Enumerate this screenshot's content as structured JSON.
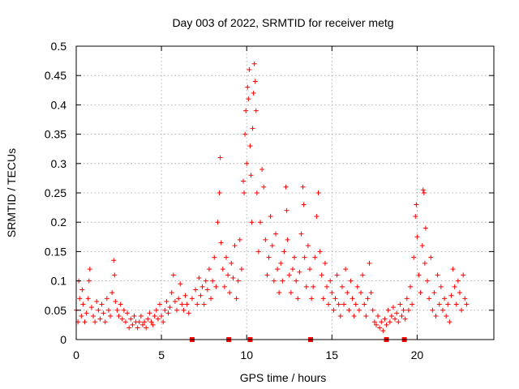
{
  "chart_data": {
    "type": "scatter",
    "title": "Day 003 of 2022, SRMTID for receiver metg",
    "xlabel": "GPS time / hours",
    "ylabel": "SRMTID / TECUs",
    "xlim": [
      0,
      24.5
    ],
    "ylim": [
      0,
      0.5
    ],
    "xticks": [
      0,
      5,
      10,
      15,
      20
    ],
    "xtick_labels": [
      "0",
      "5",
      "10",
      "15",
      "20"
    ],
    "yticks": [
      0,
      0.05,
      0.1,
      0.15,
      0.2,
      0.25,
      0.3,
      0.35,
      0.4,
      0.45,
      0.5
    ],
    "ytick_labels": [
      "0",
      "0.05",
      "0.1",
      "0.15",
      "0.2",
      "0.25",
      "0.3",
      "0.35",
      "0.4",
      "0.45",
      "0.5"
    ],
    "grid": true,
    "marker": "+",
    "color": "#ff0000",
    "series": [
      {
        "name": "SRMTID",
        "points": [
          [
            0.0,
            0.05
          ],
          [
            0.1,
            0.03
          ],
          [
            0.15,
            0.1
          ],
          [
            0.2,
            0.07
          ],
          [
            0.3,
            0.04
          ],
          [
            0.35,
            0.085
          ],
          [
            0.4,
            0.06
          ],
          [
            0.5,
            0.03
          ],
          [
            0.6,
            0.045
          ],
          [
            0.7,
            0.07
          ],
          [
            0.75,
            0.1
          ],
          [
            0.8,
            0.12
          ],
          [
            0.9,
            0.055
          ],
          [
            1.0,
            0.04
          ],
          [
            1.1,
            0.03
          ],
          [
            1.2,
            0.065
          ],
          [
            1.3,
            0.05
          ],
          [
            1.4,
            0.035
          ],
          [
            1.5,
            0.06
          ],
          [
            1.6,
            0.045
          ],
          [
            1.7,
            0.03
          ],
          [
            1.8,
            0.07
          ],
          [
            1.9,
            0.05
          ],
          [
            2.0,
            0.04
          ],
          [
            2.1,
            0.08
          ],
          [
            2.2,
            0.135
          ],
          [
            2.25,
            0.11
          ],
          [
            2.3,
            0.065
          ],
          [
            2.4,
            0.05
          ],
          [
            2.5,
            0.04
          ],
          [
            2.6,
            0.06
          ],
          [
            2.7,
            0.035
          ],
          [
            2.8,
            0.05
          ],
          [
            2.9,
            0.03
          ],
          [
            3.0,
            0.045
          ],
          [
            3.1,
            0.02
          ],
          [
            3.2,
            0.035
          ],
          [
            3.3,
            0.025
          ],
          [
            3.4,
            0.04
          ],
          [
            3.5,
            0.03
          ],
          [
            3.6,
            0.02
          ],
          [
            3.7,
            0.03
          ],
          [
            3.8,
            0.04
          ],
          [
            3.9,
            0.025
          ],
          [
            4.0,
            0.03
          ],
          [
            4.1,
            0.02
          ],
          [
            4.2,
            0.035
          ],
          [
            4.3,
            0.045
          ],
          [
            4.4,
            0.03
          ],
          [
            4.5,
            0.025
          ],
          [
            4.6,
            0.04
          ],
          [
            4.7,
            0.05
          ],
          [
            4.8,
            0.035
          ],
          [
            4.9,
            0.06
          ],
          [
            5.0,
            0.04
          ],
          [
            5.1,
            0.03
          ],
          [
            5.2,
            0.05
          ],
          [
            5.3,
            0.065
          ],
          [
            5.4,
            0.045
          ],
          [
            5.5,
            0.055
          ],
          [
            5.6,
            0.08
          ],
          [
            5.7,
            0.11
          ],
          [
            5.8,
            0.065
          ],
          [
            5.9,
            0.05
          ],
          [
            6.0,
            0.07
          ],
          [
            6.1,
            0.095
          ],
          [
            6.2,
            0.06
          ],
          [
            6.3,
            0.05
          ],
          [
            6.4,
            0.075
          ],
          [
            6.5,
            0.06
          ],
          [
            6.6,
            0.045
          ],
          [
            6.8,
            0.07
          ],
          [
            7.0,
            0.085
          ],
          [
            7.1,
            0.06
          ],
          [
            7.2,
            0.105
          ],
          [
            7.3,
            0.075
          ],
          [
            7.4,
            0.09
          ],
          [
            7.5,
            0.06
          ],
          [
            7.6,
            0.1
          ],
          [
            7.7,
            0.085
          ],
          [
            7.8,
            0.12
          ],
          [
            7.9,
            0.07
          ],
          [
            8.0,
            0.1
          ],
          [
            8.1,
            0.14
          ],
          [
            8.2,
            0.09
          ],
          [
            8.3,
            0.2
          ],
          [
            8.4,
            0.25
          ],
          [
            8.45,
            0.31
          ],
          [
            8.5,
            0.165
          ],
          [
            8.6,
            0.12
          ],
          [
            8.7,
            0.09
          ],
          [
            8.8,
            0.14
          ],
          [
            8.9,
            0.11
          ],
          [
            9.0,
            0.08
          ],
          [
            9.1,
            0.13
          ],
          [
            9.2,
            0.105
          ],
          [
            9.3,
            0.16
          ],
          [
            9.4,
            0.07
          ],
          [
            9.5,
            0.1
          ],
          [
            9.6,
            0.17
          ],
          [
            9.7,
            0.12
          ],
          [
            9.8,
            0.27
          ],
          [
            9.85,
            0.25
          ],
          [
            9.9,
            0.35
          ],
          [
            9.95,
            0.39
          ],
          [
            10.0,
            0.3
          ],
          [
            10.05,
            0.43
          ],
          [
            10.1,
            0.41
          ],
          [
            10.15,
            0.46
          ],
          [
            10.2,
            0.33
          ],
          [
            10.25,
            0.28
          ],
          [
            10.3,
            0.2
          ],
          [
            10.35,
            0.36
          ],
          [
            10.4,
            0.42
          ],
          [
            10.45,
            0.47
          ],
          [
            10.5,
            0.44
          ],
          [
            10.55,
            0.39
          ],
          [
            10.6,
            0.25
          ],
          [
            10.7,
            0.15
          ],
          [
            10.8,
            0.2
          ],
          [
            10.9,
            0.29
          ],
          [
            11.0,
            0.26
          ],
          [
            11.1,
            0.17
          ],
          [
            11.2,
            0.11
          ],
          [
            11.3,
            0.14
          ],
          [
            11.4,
            0.21
          ],
          [
            11.5,
            0.16
          ],
          [
            11.6,
            0.1
          ],
          [
            11.7,
            0.18
          ],
          [
            11.8,
            0.12
          ],
          [
            11.9,
            0.08
          ],
          [
            12.0,
            0.13
          ],
          [
            12.1,
            0.1
          ],
          [
            12.2,
            0.15
          ],
          [
            12.3,
            0.26
          ],
          [
            12.35,
            0.22
          ],
          [
            12.4,
            0.17
          ],
          [
            12.5,
            0.11
          ],
          [
            12.6,
            0.08
          ],
          [
            12.7,
            0.12
          ],
          [
            12.8,
            0.14
          ],
          [
            12.9,
            0.1
          ],
          [
            13.0,
            0.07
          ],
          [
            13.1,
            0.115
          ],
          [
            13.2,
            0.18
          ],
          [
            13.3,
            0.26
          ],
          [
            13.35,
            0.23
          ],
          [
            13.4,
            0.14
          ],
          [
            13.5,
            0.09
          ],
          [
            13.6,
            0.16
          ],
          [
            13.7,
            0.12
          ],
          [
            13.8,
            0.07
          ],
          [
            13.9,
            0.09
          ],
          [
            14.0,
            0.14
          ],
          [
            14.1,
            0.21
          ],
          [
            14.2,
            0.25
          ],
          [
            14.3,
            0.15
          ],
          [
            14.4,
            0.11
          ],
          [
            14.5,
            0.07
          ],
          [
            14.6,
            0.13
          ],
          [
            14.7,
            0.09
          ],
          [
            14.8,
            0.06
          ],
          [
            14.9,
            0.1
          ],
          [
            15.0,
            0.08
          ],
          [
            15.1,
            0.05
          ],
          [
            15.2,
            0.07
          ],
          [
            15.3,
            0.11
          ],
          [
            15.4,
            0.06
          ],
          [
            15.5,
            0.04
          ],
          [
            15.6,
            0.09
          ],
          [
            15.7,
            0.06
          ],
          [
            15.8,
            0.12
          ],
          [
            15.9,
            0.08
          ],
          [
            16.0,
            0.05
          ],
          [
            16.1,
            0.1
          ],
          [
            16.2,
            0.07
          ],
          [
            16.3,
            0.04
          ],
          [
            16.4,
            0.06
          ],
          [
            16.5,
            0.09
          ],
          [
            16.6,
            0.05
          ],
          [
            16.7,
            0.08
          ],
          [
            16.8,
            0.11
          ],
          [
            16.9,
            0.06
          ],
          [
            17.0,
            0.04
          ],
          [
            17.1,
            0.07
          ],
          [
            17.2,
            0.13
          ],
          [
            17.3,
            0.08
          ],
          [
            17.4,
            0.05
          ],
          [
            17.5,
            0.03
          ],
          [
            17.6,
            0.025
          ],
          [
            17.7,
            0.04
          ],
          [
            17.8,
            0.02
          ],
          [
            17.9,
            0.03
          ],
          [
            18.0,
            0.015
          ],
          [
            18.1,
            0.035
          ],
          [
            18.2,
            0.025
          ],
          [
            18.3,
            0.05
          ],
          [
            18.4,
            0.03
          ],
          [
            18.5,
            0.04
          ],
          [
            18.6,
            0.055
          ],
          [
            18.7,
            0.035
          ],
          [
            18.8,
            0.045
          ],
          [
            18.9,
            0.03
          ],
          [
            19.0,
            0.06
          ],
          [
            19.1,
            0.04
          ],
          [
            19.2,
            0.05
          ],
          [
            19.3,
            0.035
          ],
          [
            19.4,
            0.07
          ],
          [
            19.5,
            0.05
          ],
          [
            19.6,
            0.09
          ],
          [
            19.7,
            0.06
          ],
          [
            19.8,
            0.14
          ],
          [
            19.9,
            0.21
          ],
          [
            19.95,
            0.23
          ],
          [
            20.0,
            0.175
          ],
          [
            20.1,
            0.11
          ],
          [
            20.2,
            0.08
          ],
          [
            20.3,
            0.16
          ],
          [
            20.35,
            0.255
          ],
          [
            20.4,
            0.25
          ],
          [
            20.45,
            0.13
          ],
          [
            20.5,
            0.19
          ],
          [
            20.6,
            0.1
          ],
          [
            20.7,
            0.07
          ],
          [
            20.8,
            0.14
          ],
          [
            20.9,
            0.05
          ],
          [
            21.0,
            0.08
          ],
          [
            21.1,
            0.04
          ],
          [
            21.2,
            0.11
          ],
          [
            21.3,
            0.06
          ],
          [
            21.4,
            0.09
          ],
          [
            21.5,
            0.05
          ],
          [
            21.6,
            0.07
          ],
          [
            21.7,
            0.04
          ],
          [
            21.8,
            0.06
          ],
          [
            21.9,
            0.03
          ],
          [
            22.0,
            0.075
          ],
          [
            22.1,
            0.12
          ],
          [
            22.2,
            0.09
          ],
          [
            22.3,
            0.06
          ],
          [
            22.4,
            0.1
          ],
          [
            22.5,
            0.08
          ],
          [
            22.6,
            0.05
          ],
          [
            22.7,
            0.11
          ],
          [
            22.8,
            0.07
          ],
          [
            22.9,
            0.06
          ]
        ]
      }
    ],
    "gap_markers_x": [
      6.8,
      8.95,
      10.2,
      13.75,
      18.2,
      19.25
    ]
  }
}
